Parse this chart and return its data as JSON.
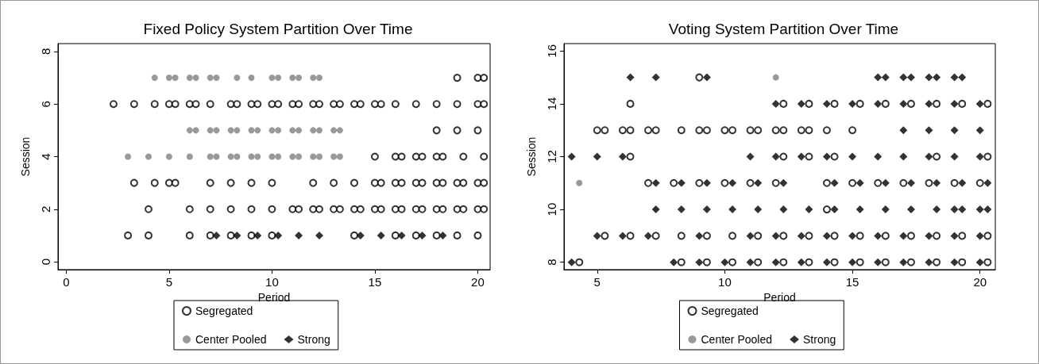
{
  "chart_data": [
    {
      "type": "scatter",
      "title": "Fixed Policy System Partition Over Time",
      "xlabel": "Period",
      "ylabel": "Session",
      "xlim": [
        -0.4,
        20.6
      ],
      "xticks": [
        0,
        5,
        10,
        15,
        20
      ],
      "ylim": [
        -0.3,
        8.3
      ],
      "yticks": [
        0,
        2,
        4,
        6,
        8
      ],
      "grid": false,
      "legend": "bottom",
      "series": [
        {
          "name": "Segregated",
          "color": "#000000",
          "marker": "open circle",
          "x": [
            19,
            20,
            20.3,
            2.3,
            3.3,
            4.3,
            5,
            5.3,
            6,
            6.3,
            7,
            8,
            8.3,
            9,
            9.3,
            10,
            10.3,
            11,
            11.3,
            12,
            12.3,
            13,
            13.3,
            14,
            14.3,
            15,
            15.3,
            16,
            17,
            18,
            19,
            20,
            20.3,
            18,
            19,
            20,
            15,
            16,
            16.3,
            17,
            17.3,
            18,
            18.3,
            19.3,
            20.3,
            3.3,
            4.3,
            5,
            5.3,
            7,
            8,
            9,
            10,
            12,
            13,
            14,
            15,
            15.3,
            16,
            16.3,
            17,
            17.3,
            18,
            18.3,
            19,
            19.3,
            20,
            20.3,
            4,
            6,
            7,
            8,
            9,
            10,
            11,
            11.3,
            12,
            12.3,
            13,
            13.3,
            14,
            14.3,
            15,
            15.3,
            16,
            16.3,
            17,
            17.3,
            18,
            18.3,
            19,
            19.3,
            20,
            20.3,
            3,
            4,
            6,
            7,
            8,
            9,
            10,
            14,
            16,
            17,
            18,
            19,
            20
          ],
          "values": [
            7,
            7,
            7,
            6,
            6,
            6,
            6,
            6,
            6,
            6,
            6,
            6,
            6,
            6,
            6,
            6,
            6,
            6,
            6,
            6,
            6,
            6,
            6,
            6,
            6,
            6,
            6,
            6,
            6,
            6,
            6,
            6,
            6,
            5,
            5,
            5,
            4,
            4,
            4,
            4,
            4,
            4,
            4,
            4,
            4,
            3,
            3,
            3,
            3,
            3,
            3,
            3,
            3,
            3,
            3,
            3,
            3,
            3,
            3,
            3,
            3,
            3,
            3,
            3,
            3,
            3,
            3,
            3,
            2,
            2,
            2,
            2,
            2,
            2,
            2,
            2,
            2,
            2,
            2,
            2,
            2,
            2,
            2,
            2,
            2,
            2,
            2,
            2,
            2,
            2,
            2,
            2,
            2,
            2,
            1,
            1,
            1,
            1,
            1,
            1,
            1,
            1,
            1,
            1,
            1,
            1,
            1
          ]
        },
        {
          "name": "Center Pooled",
          "color": "#808080",
          "marker": "circle",
          "x": [
            4.3,
            5,
            5.3,
            6,
            6.3,
            7,
            7.3,
            8.3,
            9,
            10,
            10.3,
            11,
            11.3,
            12,
            12.3,
            6,
            6.3,
            7,
            7.3,
            8,
            8.3,
            9,
            9.3,
            10,
            10.3,
            11,
            11.3,
            12,
            12.3,
            13,
            13.3,
            3,
            4,
            5,
            6,
            7,
            7.3,
            8,
            8.3,
            9,
            9.3,
            10,
            10.3,
            11,
            11.3,
            12,
            12.3,
            13,
            13.3
          ],
          "values": [
            7,
            7,
            7,
            7,
            7,
            7,
            7,
            7,
            7,
            7,
            7,
            7,
            7,
            7,
            7,
            5,
            5,
            5,
            5,
            5,
            5,
            5,
            5,
            5,
            5,
            5,
            5,
            5,
            5,
            5,
            5,
            4,
            4,
            4,
            4,
            4,
            4,
            4,
            4,
            4,
            4,
            4,
            4,
            4,
            4,
            4,
            4,
            4,
            4
          ]
        },
        {
          "name": "Strong",
          "color": "#000000",
          "marker": "diamond",
          "x": [
            7.3,
            8.3,
            9.3,
            10.3,
            11.3,
            12.3,
            14.3,
            15.3,
            16.3,
            17.3,
            18.3
          ],
          "values": [
            1,
            1,
            1,
            1,
            1,
            1,
            1,
            1,
            1,
            1,
            1
          ]
        }
      ]
    },
    {
      "type": "scatter",
      "title": "Voting System Partition Over Time",
      "xlabel": "Period",
      "ylabel": "Session",
      "xlim": [
        3.7,
        20.6
      ],
      "xticks": [
        5,
        10,
        15,
        20
      ],
      "ylim": [
        7.72,
        16.28
      ],
      "yticks": [
        8,
        10,
        12,
        14,
        16
      ],
      "grid": false,
      "legend": "bottom",
      "series": [
        {
          "name": "Segregated",
          "color": "#000000",
          "marker": "open circle",
          "x": [
            9,
            6.3,
            12.3,
            13.3,
            14.3,
            15.3,
            16.3,
            17.3,
            18.3,
            19.3,
            20.3,
            5,
            5.3,
            6,
            6.3,
            7,
            7.3,
            8.3,
            9,
            9.3,
            10,
            10.3,
            11,
            11.3,
            12,
            12.3,
            13,
            13.3,
            14,
            15,
            6.3,
            12.3,
            13.3,
            14.3,
            18.3,
            20.3,
            7,
            8,
            9,
            10,
            11,
            12,
            14,
            15,
            16,
            17,
            18,
            19,
            20,
            14,
            5.3,
            6.3,
            7.3,
            8.3,
            9.3,
            10.3,
            11.3,
            12.3,
            13.3,
            14.3,
            15.3,
            16.3,
            17.3,
            18.3,
            19.3,
            20.3,
            4.3,
            8.3,
            9.3,
            10.3,
            11.3,
            12.3,
            13.3,
            14.3,
            15.3,
            16.3,
            17.3,
            18.3,
            19.3,
            20.3
          ],
          "values": [
            15,
            14,
            14,
            14,
            14,
            14,
            14,
            14,
            14,
            14,
            14,
            13,
            13,
            13,
            13,
            13,
            13,
            13,
            13,
            13,
            13,
            13,
            13,
            13,
            13,
            13,
            13,
            13,
            13,
            13,
            12,
            12,
            12,
            12,
            12,
            12,
            11,
            11,
            11,
            11,
            11,
            11,
            11,
            11,
            11,
            11,
            11,
            11,
            11,
            10,
            9,
            9,
            9,
            9,
            9,
            9,
            9,
            9,
            9,
            9,
            9,
            9,
            9,
            9,
            9,
            9,
            8,
            8,
            8,
            8,
            8,
            8,
            8,
            8,
            8,
            8,
            8,
            8,
            8,
            8
          ]
        },
        {
          "name": "Center Pooled",
          "color": "#808080",
          "marker": "circle",
          "x": [
            12,
            4.3
          ],
          "values": [
            15,
            11
          ]
        },
        {
          "name": "Strong",
          "color": "#000000",
          "marker": "diamond",
          "x": [
            6.3,
            7.3,
            9.3,
            16,
            16.3,
            17,
            17.3,
            18,
            18.3,
            19,
            19.3,
            12,
            13,
            14,
            15,
            16,
            17,
            18,
            19,
            20,
            17,
            18,
            19,
            20,
            4,
            5,
            6,
            11,
            12,
            13,
            14,
            15,
            16,
            17,
            18,
            19,
            20,
            7.3,
            8.3,
            9.3,
            10.3,
            11.3,
            12.3,
            14.3,
            15.3,
            16.3,
            17.3,
            18.3,
            19.3,
            20.3,
            7.3,
            8.3,
            9.3,
            10.3,
            11.3,
            12.3,
            13.3,
            14.3,
            15.3,
            16.3,
            17.3,
            18.3,
            19,
            19.3,
            20,
            20.3,
            5,
            6,
            7,
            9,
            11,
            12,
            13,
            14,
            15,
            16,
            17,
            18,
            19,
            20,
            4,
            8,
            9,
            10,
            11,
            12,
            13,
            14,
            15,
            16,
            17,
            18,
            19,
            20
          ],
          "values": [
            15,
            15,
            15,
            15,
            15,
            15,
            15,
            15,
            15,
            15,
            15,
            14,
            14,
            14,
            14,
            14,
            14,
            14,
            14,
            14,
            13,
            13,
            13,
            13,
            12,
            12,
            12,
            12,
            12,
            12,
            12,
            12,
            12,
            12,
            12,
            12,
            12,
            11,
            11,
            11,
            11,
            11,
            11,
            11,
            11,
            11,
            11,
            11,
            11,
            11,
            10,
            10,
            10,
            10,
            10,
            10,
            10,
            10,
            10,
            10,
            10,
            10,
            10,
            10,
            10,
            10,
            9,
            9,
            9,
            9,
            9,
            9,
            9,
            9,
            9,
            9,
            9,
            9,
            9,
            9,
            8,
            8,
            8,
            8,
            8,
            8,
            8,
            8,
            8,
            8,
            8,
            8,
            8,
            8
          ]
        }
      ]
    }
  ]
}
